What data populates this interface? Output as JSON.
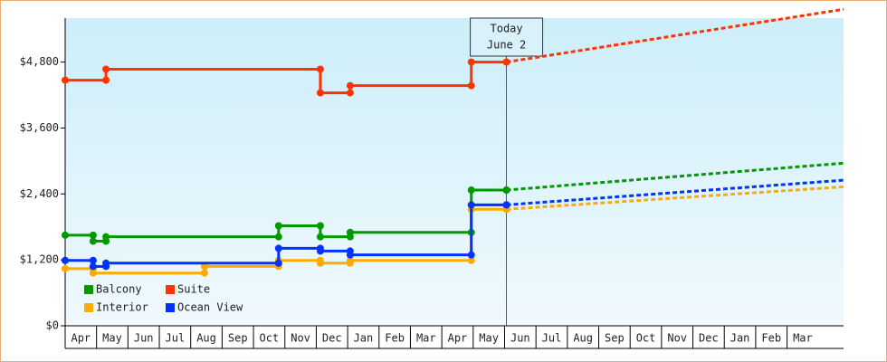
{
  "chart_data": {
    "type": "step",
    "categories": [
      "Apr",
      "May",
      "Jun",
      "Jul",
      "Aug",
      "Sep",
      "Oct",
      "Nov",
      "Dec",
      "Jan",
      "Feb",
      "Mar",
      "Apr",
      "May",
      "Jun",
      "Jul",
      "Aug",
      "Sep",
      "Oct",
      "Nov",
      "Dec",
      "Jan",
      "Feb",
      "Mar"
    ],
    "xlim": [
      0,
      24.8
    ],
    "ylim": [
      0,
      5600
    ],
    "yticks": [
      {
        "value": 0,
        "label": "$0"
      },
      {
        "value": 1200,
        "label": "$1,200"
      },
      {
        "value": 2400,
        "label": "$2,400"
      },
      {
        "value": 3600,
        "label": "$3,600"
      },
      {
        "value": 4800,
        "label": "$4,800"
      }
    ],
    "annotation": {
      "x": 14.06,
      "lines": [
        "Today",
        "June 2"
      ]
    },
    "series": [
      {
        "name": "Balcony",
        "color": "#009900",
        "x": [
          0,
          0.89,
          1.3,
          6.8,
          8.13,
          9.08,
          12.94,
          14.06
        ],
        "values": [
          1650,
          1540,
          1620,
          1820,
          1620,
          1700,
          2470,
          2470
        ],
        "projection": {
          "x": [
            14.06,
            24.8
          ],
          "values": [
            2470,
            2960
          ]
        }
      },
      {
        "name": "Suite",
        "color": "#ff3300",
        "x": [
          0,
          1.3,
          8.13,
          9.08,
          12.94,
          14.06
        ],
        "values": [
          4470,
          4670,
          4240,
          4370,
          4800,
          4800
        ],
        "projection": {
          "x": [
            14.06,
            24.8
          ],
          "values": [
            4800,
            5760
          ]
        }
      },
      {
        "name": "Interior",
        "color": "#ffaa00",
        "x": [
          0,
          0.89,
          4.44,
          6.8,
          8.13,
          9.08,
          12.94,
          14.06
        ],
        "values": [
          1040,
          960,
          1080,
          1190,
          1140,
          1190,
          2120,
          2120
        ],
        "projection": {
          "x": [
            14.06,
            24.8
          ],
          "values": [
            2120,
            2530
          ]
        }
      },
      {
        "name": "Ocean View",
        "color": "#0033ff",
        "x": [
          0,
          0.89,
          1.3,
          6.8,
          8.13,
          9.08,
          12.94,
          14.06
        ],
        "values": [
          1190,
          1080,
          1140,
          1410,
          1360,
          1290,
          2200,
          2200
        ],
        "projection": {
          "x": [
            14.06,
            24.8
          ],
          "values": [
            2200,
            2650
          ]
        }
      }
    ]
  }
}
